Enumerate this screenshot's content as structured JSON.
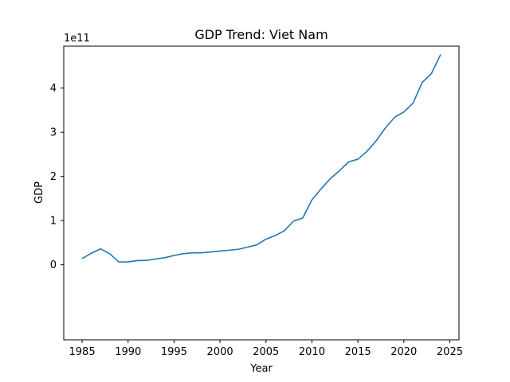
{
  "chart_data": {
    "type": "line",
    "title": "GDP Trend: Viet Nam",
    "xlabel": "Year",
    "ylabel": "GDP",
    "y_offset_label": "1e11",
    "y_scale": 100000000000,
    "xlim": [
      1983,
      2026
    ],
    "ylim": [
      -1.7,
      4.95
    ],
    "x_ticks": [
      1985,
      1990,
      1995,
      2000,
      2005,
      2010,
      2015,
      2020,
      2025
    ],
    "y_ticks": [
      0,
      1,
      2,
      3,
      4
    ],
    "grid": false,
    "series": [
      {
        "color": "#1f77b4",
        "x": [
          1985,
          1986,
          1987,
          1988,
          1989,
          1990,
          1991,
          1992,
          1993,
          1994,
          1995,
          1996,
          1997,
          1998,
          1999,
          2000,
          2001,
          2002,
          2003,
          2004,
          2005,
          2006,
          2007,
          2008,
          2009,
          2010,
          2011,
          2012,
          2013,
          2014,
          2015,
          2016,
          2017,
          2018,
          2019,
          2020,
          2021,
          2022,
          2023,
          2024
        ],
        "values": [
          0.14,
          0.26,
          0.36,
          0.25,
          0.06,
          0.065,
          0.095,
          0.098,
          0.13,
          0.16,
          0.21,
          0.25,
          0.27,
          0.27,
          0.29,
          0.31,
          0.33,
          0.35,
          0.4,
          0.45,
          0.58,
          0.66,
          0.77,
          0.99,
          1.06,
          1.47,
          1.72,
          1.95,
          2.13,
          2.33,
          2.39,
          2.57,
          2.81,
          3.1,
          3.34,
          3.46,
          3.66,
          4.13,
          4.33,
          4.76
        ]
      }
    ]
  }
}
